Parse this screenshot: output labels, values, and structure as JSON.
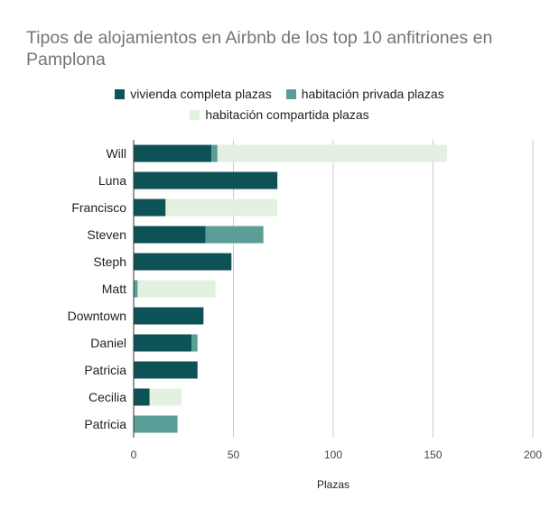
{
  "chart_data": {
    "type": "bar",
    "orientation": "horizontal",
    "stacked": true,
    "title": "Tipos de alojamientos en Airbnb de los top 10 anfitriones en Pamplona",
    "xlabel": "Plazas",
    "ylabel": "",
    "xlim": [
      0,
      200
    ],
    "xticks": [
      0,
      50,
      100,
      150,
      200
    ],
    "grid": true,
    "legend_position": "top",
    "categories": [
      "Will",
      "Luna",
      "Francisco",
      "Steven",
      "Steph",
      "Matt",
      "Downtown",
      "Daniel",
      "Patricia",
      "Cecilia",
      "Patricia"
    ],
    "series": [
      {
        "name": "vivienda completa plazas",
        "color": "#0d5257",
        "values": [
          39,
          72,
          16,
          36,
          49,
          0,
          35,
          29,
          32,
          8,
          0
        ]
      },
      {
        "name": "habitación privada plazas",
        "color": "#5a9e97",
        "values": [
          3,
          0,
          0,
          29,
          0,
          2,
          0,
          3,
          0,
          0,
          22
        ]
      },
      {
        "name": "habitación compartida plazas",
        "color": "#e3f1e1",
        "values": [
          115,
          0,
          56,
          0,
          0,
          39,
          0,
          0,
          0,
          16,
          0
        ]
      }
    ]
  }
}
